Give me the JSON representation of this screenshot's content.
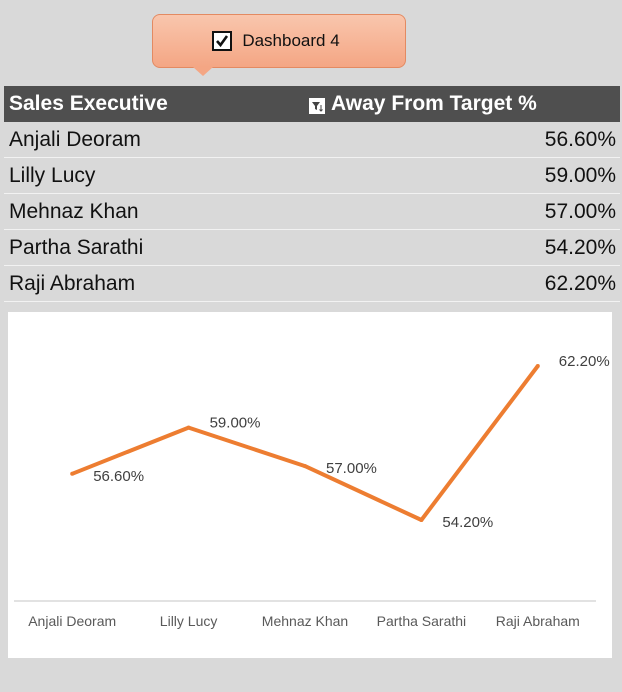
{
  "callout": {
    "label": "Dashboard 4",
    "checked": true
  },
  "table": {
    "headers": {
      "executive": "Sales Executive",
      "target": "Away From Target %"
    },
    "rows": [
      {
        "name": "Anjali Deoram",
        "value": "56.60%"
      },
      {
        "name": "Lilly Lucy",
        "value": "59.00%"
      },
      {
        "name": "Mehnaz Khan",
        "value": "57.00%"
      },
      {
        "name": "Partha Sarathi",
        "value": "54.20%"
      },
      {
        "name": "Raji Abraham",
        "value": "62.20%"
      }
    ]
  },
  "colors": {
    "line": "#ed7d31",
    "header_bg": "#4f4f4f",
    "callout_fill": "#f4a684"
  },
  "chart_data": {
    "type": "line",
    "categories": [
      "Anjali Deoram",
      "Lilly Lucy",
      "Mehnaz Khan",
      "Partha Sarathi",
      "Raji Abraham"
    ],
    "series": [
      {
        "values": [
          56.6,
          59.0,
          57.0,
          54.2,
          62.2
        ]
      }
    ],
    "data_labels": [
      "56.60%",
      "59.00%",
      "57.00%",
      "54.20%",
      "62.20%"
    ],
    "title": "",
    "xlabel": "",
    "ylabel": "",
    "legend": "none",
    "grid": false
  }
}
